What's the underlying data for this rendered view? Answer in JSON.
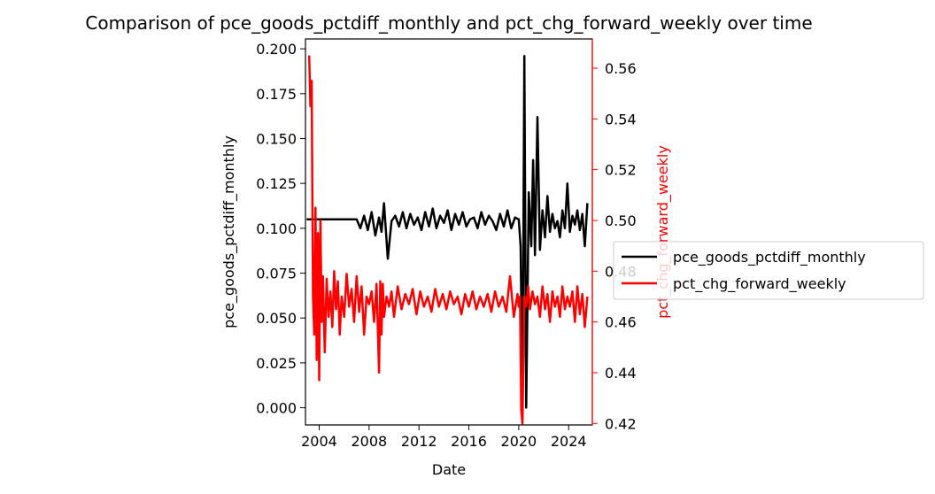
{
  "chart_data": {
    "type": "line",
    "title": "Comparison of pce_goods_pctdiff_monthly and pct_chg_forward_weekly over time",
    "xlabel": "Date",
    "ylabel_left": "pce_goods_pctdiff_monthly",
    "ylabel_right": "pct_chg_forward_weekly",
    "xlim": [
      2002.9,
      2025.9
    ],
    "ylim_left": [
      -0.0096,
      0.2055
    ],
    "ylim_right": [
      0.4194,
      0.5715
    ],
    "x_ticks": [
      2004,
      2008,
      2012,
      2016,
      2020,
      2024
    ],
    "x_tick_labels": [
      "2004",
      "2008",
      "2012",
      "2016",
      "2020",
      "2024"
    ],
    "y_left_ticks": [
      0.0,
      0.025,
      0.05,
      0.075,
      0.1,
      0.125,
      0.15,
      0.175,
      0.2
    ],
    "y_left_tick_labels": [
      "0.000",
      "0.025",
      "0.050",
      "0.075",
      "0.100",
      "0.125",
      "0.150",
      "0.175",
      "0.200"
    ],
    "y_right_ticks": [
      0.42,
      0.44,
      0.46,
      0.48,
      0.5,
      0.52,
      0.54,
      0.56
    ],
    "y_right_tick_labels": [
      "0.42",
      "0.44",
      "0.46",
      "0.48",
      "0.50",
      "0.52",
      "0.54",
      "0.56"
    ],
    "grid": false,
    "legend_position": "right, outside the plot",
    "series": [
      {
        "name": "pce_goods_pctdiff_monthly",
        "axis": "left",
        "color": "#000000",
        "x": [
          2003.0,
          2004.0,
          2005.0,
          2006.0,
          2007.0,
          2007.3,
          2007.6,
          2007.9,
          2008.2,
          2008.5,
          2008.8,
          2009.0,
          2009.2,
          2009.5,
          2009.8,
          2010.1,
          2010.4,
          2010.7,
          2011.0,
          2011.3,
          2011.6,
          2011.9,
          2012.2,
          2012.5,
          2012.8,
          2013.1,
          2013.4,
          2013.7,
          2014.0,
          2014.3,
          2014.6,
          2014.9,
          2015.2,
          2015.5,
          2015.8,
          2016.1,
          2016.4,
          2016.7,
          2017.0,
          2017.3,
          2017.6,
          2017.9,
          2018.2,
          2018.5,
          2018.8,
          2019.1,
          2019.4,
          2019.7,
          2020.0,
          2020.15,
          2020.3,
          2020.45,
          2020.6,
          2020.8,
          2021.0,
          2021.15,
          2021.3,
          2021.5,
          2021.7,
          2021.9,
          2022.1,
          2022.3,
          2022.5,
          2022.7,
          2022.9,
          2023.1,
          2023.3,
          2023.5,
          2023.7,
          2023.9,
          2024.1,
          2024.3,
          2024.5,
          2024.7,
          2024.9,
          2025.1,
          2025.3,
          2025.5
        ],
        "values": [
          0.105,
          0.105,
          0.105,
          0.105,
          0.105,
          0.1,
          0.107,
          0.099,
          0.109,
          0.096,
          0.106,
          0.098,
          0.114,
          0.083,
          0.104,
          0.107,
          0.101,
          0.109,
          0.1,
          0.108,
          0.102,
          0.106,
          0.099,
          0.109,
          0.101,
          0.111,
          0.1,
          0.107,
          0.103,
          0.11,
          0.099,
          0.108,
          0.102,
          0.109,
          0.101,
          0.105,
          0.106,
          0.1,
          0.109,
          0.102,
          0.107,
          0.104,
          0.099,
          0.108,
          0.101,
          0.11,
          0.1,
          0.106,
          0.105,
          0.09,
          0.0,
          0.196,
          0.0,
          0.12,
          0.09,
          0.138,
          0.085,
          0.162,
          0.088,
          0.11,
          0.095,
          0.118,
          0.098,
          0.108,
          0.1,
          0.104,
          0.095,
          0.11,
          0.1,
          0.125,
          0.098,
          0.107,
          0.102,
          0.11,
          0.099,
          0.108,
          0.09,
          0.114
        ]
      },
      {
        "name": "pct_chg_forward_weekly",
        "axis": "right",
        "color": "#ff0000",
        "x": [
          2003.2,
          2003.3,
          2003.4,
          2003.5,
          2003.6,
          2003.7,
          2003.8,
          2003.9,
          2004.0,
          2004.1,
          2004.2,
          2004.3,
          2004.45,
          2004.6,
          2004.75,
          2004.9,
          2005.05,
          2005.2,
          2005.35,
          2005.5,
          2005.65,
          2005.8,
          2006.0,
          2006.2,
          2006.4,
          2006.6,
          2006.8,
          2007.0,
          2007.2,
          2007.4,
          2007.6,
          2007.8,
          2008.0,
          2008.2,
          2008.4,
          2008.6,
          2008.8,
          2008.9,
          2009.0,
          2009.1,
          2009.2,
          2009.4,
          2009.6,
          2009.8,
          2010.0,
          2010.3,
          2010.6,
          2010.9,
          2011.2,
          2011.5,
          2011.8,
          2012.1,
          2012.4,
          2012.7,
          2013.0,
          2013.3,
          2013.6,
          2013.9,
          2014.2,
          2014.5,
          2014.8,
          2015.1,
          2015.4,
          2015.7,
          2016.0,
          2016.3,
          2016.6,
          2016.9,
          2017.2,
          2017.5,
          2017.8,
          2018.1,
          2018.4,
          2018.7,
          2019.0,
          2019.3,
          2019.6,
          2019.9,
          2020.0,
          2020.1,
          2020.2,
          2020.3,
          2020.45,
          2020.6,
          2020.75,
          2020.9,
          2021.1,
          2021.3,
          2021.5,
          2021.7,
          2021.9,
          2022.1,
          2022.3,
          2022.5,
          2022.7,
          2022.9,
          2023.1,
          2023.3,
          2023.5,
          2023.7,
          2023.9,
          2024.1,
          2024.3,
          2024.5,
          2024.7,
          2024.9,
          2025.1,
          2025.3,
          2025.5
        ],
        "values": [
          0.565,
          0.545,
          0.555,
          0.47,
          0.455,
          0.505,
          0.445,
          0.495,
          0.437,
          0.5,
          0.46,
          0.478,
          0.448,
          0.477,
          0.462,
          0.472,
          0.458,
          0.48,
          0.465,
          0.476,
          0.455,
          0.47,
          0.462,
          0.479,
          0.466,
          0.473,
          0.46,
          0.478,
          0.464,
          0.474,
          0.455,
          0.47,
          0.467,
          0.472,
          0.46,
          0.475,
          0.44,
          0.476,
          0.455,
          0.475,
          0.462,
          0.47,
          0.466,
          0.472,
          0.462,
          0.474,
          0.465,
          0.471,
          0.467,
          0.473,
          0.463,
          0.472,
          0.466,
          0.47,
          0.464,
          0.473,
          0.466,
          0.471,
          0.465,
          0.472,
          0.467,
          0.47,
          0.463,
          0.471,
          0.466,
          0.472,
          0.465,
          0.47,
          0.466,
          0.471,
          0.464,
          0.472,
          0.466,
          0.47,
          0.464,
          0.478,
          0.462,
          0.471,
          0.466,
          0.47,
          0.425,
          0.42,
          0.47,
          0.466,
          0.474,
          0.465,
          0.472,
          0.467,
          0.47,
          0.462,
          0.474,
          0.465,
          0.471,
          0.46,
          0.472,
          0.466,
          0.47,
          0.462,
          0.474,
          0.465,
          0.47,
          0.466,
          0.472,
          0.46,
          0.474,
          0.463,
          0.471,
          0.458,
          0.47
        ]
      }
    ]
  }
}
